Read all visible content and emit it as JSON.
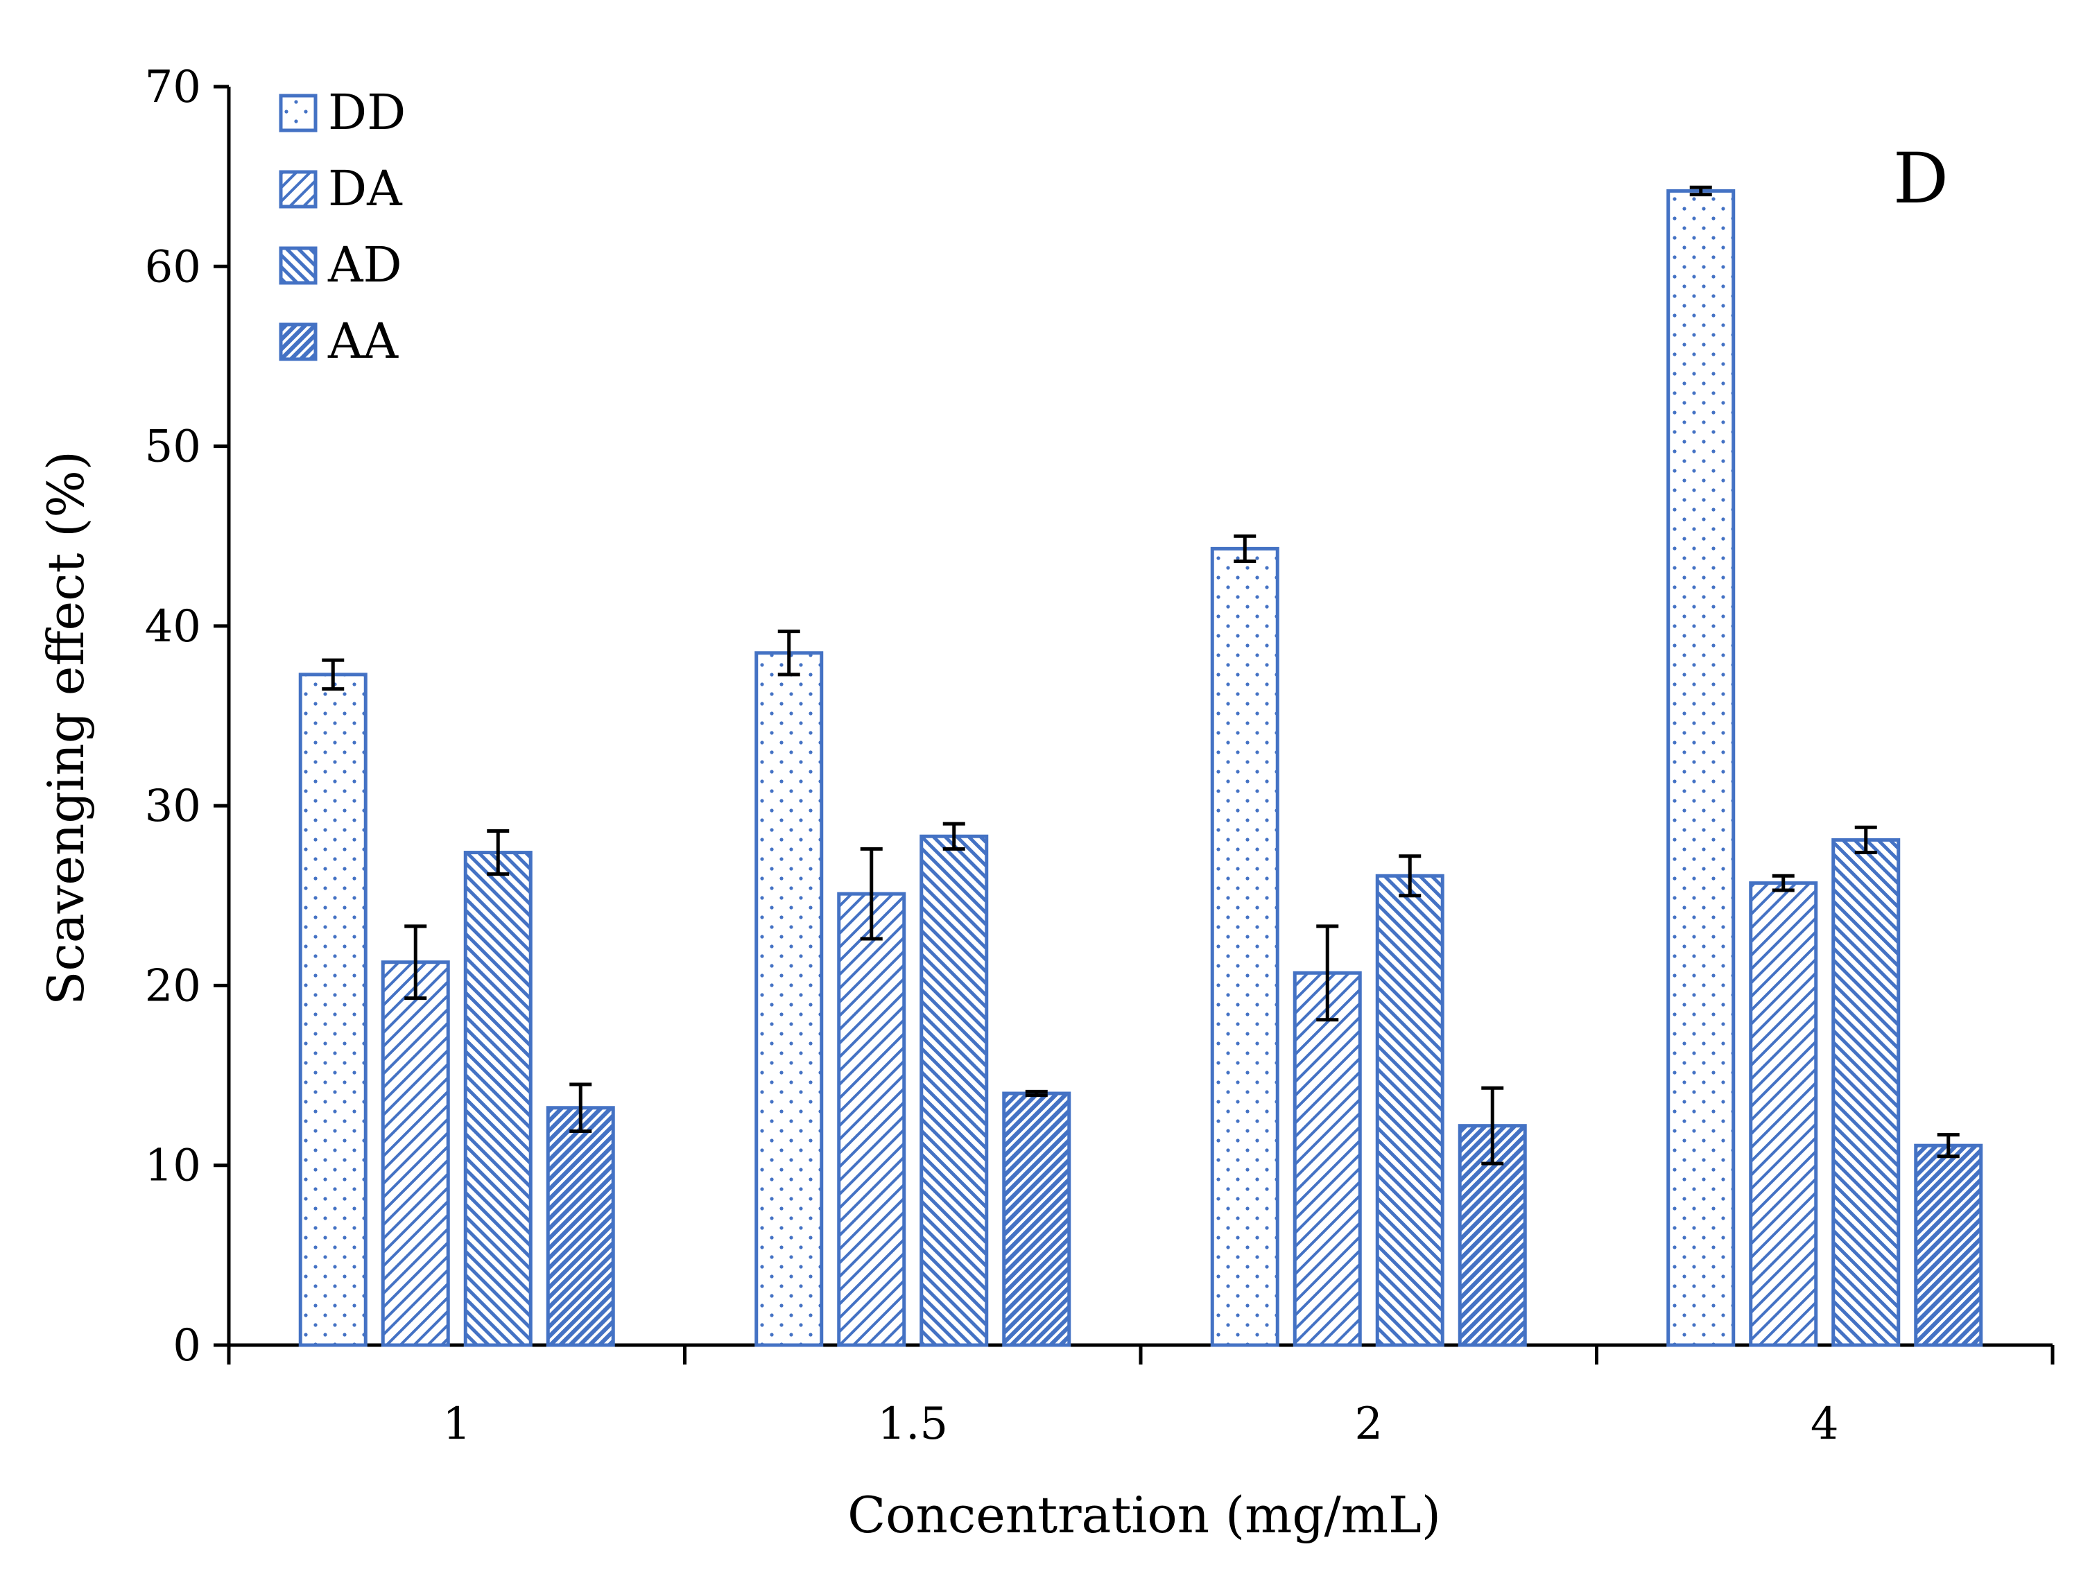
{
  "colors": {
    "bar_stroke": "#4472c4",
    "bar_fill": "#ffffff",
    "axis": "#000000",
    "error_bar": "#000000"
  },
  "chart_data": {
    "type": "bar",
    "panel_label": "D",
    "xlabel": "Concentration (mg/mL)",
    "ylabel": "Scavenging effect (%)",
    "ylim": [
      0,
      70
    ],
    "yticks": [
      0,
      10,
      20,
      30,
      40,
      50,
      60,
      70
    ],
    "categories": [
      "1",
      "1.5",
      "2",
      "4"
    ],
    "legend_position": "top-left",
    "series": [
      {
        "name": "DD",
        "pattern": "dots",
        "values": [
          37.3,
          38.5,
          44.3,
          64.2
        ],
        "errors": [
          0.8,
          1.2,
          0.7,
          0.2
        ]
      },
      {
        "name": "DA",
        "pattern": "sparse-diagonal",
        "values": [
          21.3,
          25.1,
          20.7,
          25.7
        ],
        "errors": [
          2.0,
          2.5,
          2.6,
          0.4
        ]
      },
      {
        "name": "AD",
        "pattern": "medium-diagonal",
        "values": [
          27.4,
          28.3,
          26.1,
          28.1
        ],
        "errors": [
          1.2,
          0.7,
          1.1,
          0.7
        ]
      },
      {
        "name": "AA",
        "pattern": "dense-diagonal",
        "values": [
          13.2,
          14.0,
          12.2,
          11.1
        ],
        "errors": [
          1.3,
          0.1,
          2.1,
          0.6
        ]
      }
    ]
  }
}
